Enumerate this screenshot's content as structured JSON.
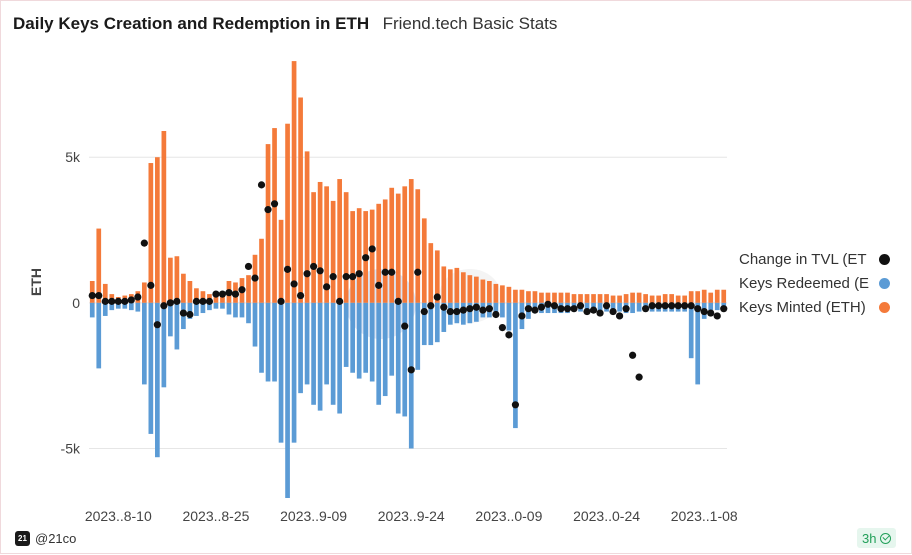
{
  "header": {
    "title": "Daily Keys Creation and Redemption in ETH",
    "subtitle": "Friend.tech Basic Stats"
  },
  "footer": {
    "author": "@21co",
    "logo_text": "21",
    "age": "3h"
  },
  "colors": {
    "minted": "#F47A3A",
    "redeemed": "#5B9BD5",
    "tvl": "#111111",
    "grid": "#e6e6e6"
  },
  "chart_data": {
    "type": "bar",
    "ylabel": "ETH",
    "ylim": [
      -6700,
      8200
    ],
    "yticks": [
      5000,
      0,
      -5000
    ],
    "ytick_labels": [
      "5k",
      "0",
      "-5k"
    ],
    "xtick_labels": [
      "2023..8-10",
      "2023..8-25",
      "2023..9-09",
      "2023..9-24",
      "2023..0-09",
      "2023..0-24",
      "2023..1-08"
    ],
    "xtick_index": [
      4,
      19,
      34,
      49,
      64,
      79,
      94
    ],
    "legend": [
      {
        "label": "Change in TVL (ETH)",
        "shown": "Change in TVL (ET",
        "color": "#111111"
      },
      {
        "label": "Keys Redeemed (ETH)",
        "shown": "Keys Redeemed (E",
        "color": "#5B9BD5"
      },
      {
        "label": "Keys Minted (ETH)",
        "shown": "Keys Minted (ETH)",
        "color": "#F47A3A"
      }
    ],
    "series": [
      {
        "name": "Keys Minted (ETH)",
        "values": [
          750,
          2550,
          650,
          300,
          200,
          250,
          300,
          400,
          700,
          4800,
          5000,
          5900,
          1550,
          1600,
          1000,
          750,
          500,
          400,
          300,
          250,
          250,
          750,
          700,
          850,
          950,
          1650,
          2200,
          5450,
          6000,
          2850,
          6150,
          8300,
          7050,
          5200,
          3800,
          4150,
          4000,
          3500,
          4250,
          3800,
          3150,
          3250,
          3150,
          3200,
          3400,
          3550,
          3950,
          3750,
          4000,
          4250,
          3900,
          2900,
          2050,
          1800,
          1250,
          1150,
          1200,
          1050,
          950,
          900,
          800,
          750,
          650,
          600,
          550,
          450,
          450,
          400,
          400,
          350,
          350,
          350,
          350,
          350,
          300,
          300,
          300,
          300,
          300,
          300,
          250,
          250,
          300,
          350,
          350,
          300,
          250,
          250,
          300,
          300,
          250,
          250,
          400,
          400,
          450,
          350,
          450,
          450
        ]
      },
      {
        "name": "Keys Redeemed (ETH)",
        "values": [
          -500,
          -2250,
          -450,
          -250,
          -200,
          -200,
          -250,
          -300,
          -2800,
          -4500,
          -5300,
          -2900,
          -1150,
          -1600,
          -900,
          -550,
          -450,
          -350,
          -250,
          -200,
          -200,
          -400,
          -500,
          -500,
          -700,
          -1500,
          -2400,
          -2700,
          -2700,
          -4800,
          -6700,
          -4800,
          -3100,
          -2800,
          -3500,
          -3700,
          -2800,
          -3500,
          -3800,
          -2200,
          -2400,
          -2600,
          -2400,
          -2700,
          -3500,
          -3200,
          -2500,
          -3800,
          -3900,
          -5000,
          -2300,
          -1450,
          -1450,
          -1350,
          -1000,
          -750,
          -700,
          -750,
          -700,
          -650,
          -500,
          -500,
          -500,
          -500,
          -950,
          -4300,
          -900,
          -550,
          -350,
          -350,
          -350,
          -350,
          -350,
          -350,
          -300,
          -300,
          -300,
          -300,
          -300,
          -300,
          -300,
          -300,
          -350,
          -350,
          -300,
          -300,
          -300,
          -300,
          -300,
          -300,
          -300,
          -300,
          -1900,
          -2800,
          -550,
          -250,
          -250,
          -250
        ]
      },
      {
        "name": "Change in TVL (ETH)",
        "values": [
          250,
          250,
          50,
          50,
          50,
          50,
          100,
          200,
          2050,
          600,
          -750,
          -100,
          0,
          50,
          -350,
          -400,
          50,
          50,
          50,
          300,
          300,
          350,
          300,
          450,
          1250,
          850,
          4050,
          3200,
          3400,
          50,
          1150,
          650,
          250,
          1000,
          1250,
          1100,
          550,
          900,
          50,
          900,
          900,
          1000,
          1550,
          1850,
          600,
          1050,
          1050,
          50,
          -800,
          -2300,
          1050,
          -300,
          -100,
          200,
          -150,
          -300,
          -300,
          -250,
          -200,
          -150,
          -250,
          -200,
          -400,
          -850,
          -1100,
          -3500,
          -450,
          -200,
          -250,
          -150,
          -50,
          -100,
          -200,
          -200,
          -200,
          -100,
          -300,
          -250,
          -350,
          -100,
          -300,
          -450,
          -200,
          -1800,
          -2550,
          -200,
          -100,
          -100,
          -100,
          -100,
          -100,
          -100,
          -100,
          -200,
          -300,
          -350,
          -450,
          -200
        ]
      }
    ]
  }
}
